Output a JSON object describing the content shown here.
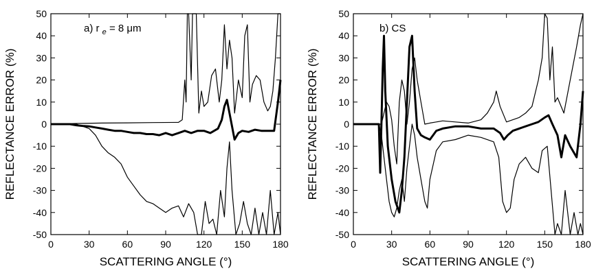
{
  "chart_data": [
    {
      "type": "line",
      "panel_label": "a) r",
      "panel_label_sub": "e",
      "panel_label_rest": " = 8 μm",
      "xlabel": "SCATTERING ANGLE (°)",
      "ylabel": "REFLECTANCE ERROR (%)",
      "xlim": [
        0,
        180
      ],
      "ylim": [
        -50,
        50
      ],
      "xticks": [
        "0",
        "30",
        "60",
        "90",
        "120",
        "150",
        "180"
      ],
      "yticks": [
        "50",
        "40",
        "30",
        "20",
        "10",
        "0",
        "-10",
        "-20",
        "-30",
        "-40",
        "-50"
      ],
      "grid": false,
      "series": [
        {
          "style": "thin",
          "x": [
            0,
            20,
            40,
            60,
            80,
            100,
            103,
            105,
            106,
            107,
            108,
            110,
            111,
            112,
            114,
            116,
            118,
            120,
            123,
            126,
            129,
            132,
            134,
            136,
            138,
            140,
            142,
            144,
            147,
            150,
            152,
            154,
            156,
            158,
            161,
            164,
            167,
            170,
            172,
            174,
            176,
            178,
            180
          ],
          "y": [
            0,
            0.3,
            0.5,
            0.6,
            0.7,
            0.8,
            2,
            20,
            10,
            50,
            50,
            20,
            50,
            50,
            50,
            5,
            15,
            8,
            10,
            22,
            25,
            10,
            20,
            45,
            25,
            38,
            30,
            5,
            20,
            12,
            40,
            45,
            10,
            18,
            22,
            20,
            10,
            6,
            8,
            15,
            30,
            50,
            50
          ]
        },
        {
          "style": "thick",
          "x": [
            0,
            15,
            20,
            25,
            30,
            35,
            40,
            45,
            50,
            55,
            60,
            65,
            70,
            75,
            80,
            85,
            90,
            95,
            100,
            105,
            110,
            115,
            120,
            125,
            128,
            131,
            134,
            136,
            138,
            140,
            142,
            144,
            147,
            150,
            155,
            160,
            165,
            170,
            175,
            178,
            180
          ],
          "y": [
            0,
            0,
            -0.5,
            -0.8,
            -1,
            -1.5,
            -2,
            -2.5,
            -3,
            -3,
            -3.5,
            -4,
            -4,
            -4.5,
            -4.5,
            -5,
            -4,
            -5,
            -4,
            -3,
            -4,
            -3,
            -3,
            -4,
            -3,
            -2,
            2,
            8,
            11,
            5,
            -1,
            -7,
            -4,
            -3,
            -3.5,
            -2.5,
            -3,
            -3,
            -3,
            10,
            20
          ]
        },
        {
          "style": "thin",
          "x": [
            0,
            20,
            25,
            30,
            35,
            40,
            45,
            50,
            55,
            60,
            65,
            70,
            75,
            80,
            85,
            90,
            95,
            100,
            104,
            108,
            112,
            115,
            118,
            121,
            124,
            127,
            130,
            133,
            136,
            138,
            140,
            142,
            145,
            148,
            151,
            154,
            157,
            160,
            163,
            166,
            169,
            172,
            175,
            178,
            180
          ],
          "y": [
            0,
            0,
            -1,
            -2,
            -5,
            -10,
            -13,
            -15,
            -18,
            -24,
            -28,
            -32,
            -35,
            -36,
            -38,
            -40,
            -38,
            -37,
            -42,
            -36,
            -40,
            -50,
            -50,
            -35,
            -45,
            -43,
            -50,
            -30,
            -42,
            -20,
            -8,
            -30,
            -50,
            -45,
            -35,
            -45,
            -50,
            -38,
            -50,
            -40,
            -50,
            -30,
            -50,
            -40,
            -50
          ]
        }
      ]
    },
    {
      "type": "line",
      "panel_label": "b) CS",
      "xlabel": "SCATTERING ANGLE (°)",
      "ylabel": "REFLECTANCE ERROR (%)",
      "xlim": [
        0,
        180
      ],
      "ylim": [
        -50,
        50
      ],
      "xticks": [
        "0",
        "30",
        "60",
        "90",
        "120",
        "150",
        "180"
      ],
      "yticks": [
        "50",
        "40",
        "30",
        "20",
        "10",
        "0",
        "-10",
        "-20",
        "-30",
        "-40",
        "-50"
      ],
      "grid": false,
      "series": [
        {
          "style": "thin",
          "x": [
            0,
            20,
            22,
            24,
            26,
            28,
            30,
            32,
            34,
            36,
            38,
            40,
            42,
            44,
            46,
            48,
            50,
            53,
            56,
            60,
            65,
            70,
            80,
            90,
            100,
            105,
            110,
            112,
            115,
            120,
            125,
            130,
            135,
            140,
            145,
            148,
            150,
            152,
            154,
            156,
            158,
            160,
            165,
            170,
            175,
            178,
            180
          ],
          "y": [
            0,
            0,
            0,
            5,
            10,
            8,
            2,
            -10,
            -18,
            10,
            20,
            15,
            0,
            10,
            25,
            30,
            20,
            10,
            0,
            0.5,
            1,
            1.5,
            1,
            0.5,
            2,
            5,
            10,
            15,
            8,
            1,
            2,
            3,
            5,
            8,
            20,
            30,
            50,
            48,
            20,
            35,
            10,
            12,
            5,
            20,
            35,
            45,
            50
          ]
        },
        {
          "style": "thick",
          "x": [
            0,
            20,
            21,
            22,
            23,
            24,
            25,
            27,
            30,
            33,
            36,
            38,
            40,
            42,
            44,
            46,
            48,
            50,
            53,
            56,
            60,
            65,
            70,
            80,
            90,
            100,
            110,
            115,
            118,
            121,
            125,
            130,
            135,
            140,
            145,
            150,
            153,
            156,
            160,
            163,
            166,
            170,
            175,
            178,
            180
          ],
          "y": [
            0,
            0,
            -22,
            0,
            25,
            40,
            15,
            -10,
            -25,
            -35,
            -40,
            -30,
            -15,
            10,
            35,
            40,
            15,
            -2,
            -5,
            -6,
            -7,
            -3,
            -2,
            -1,
            -1,
            -2,
            -2,
            -4,
            -7,
            -5,
            -3,
            -2,
            -1,
            0,
            1,
            3,
            4,
            0,
            -5,
            -15,
            -5,
            -10,
            -15,
            0,
            15
          ]
        },
        {
          "style": "thin",
          "x": [
            0,
            20,
            22,
            24,
            26,
            28,
            30,
            32,
            34,
            36,
            38,
            40,
            42,
            44,
            46,
            48,
            50,
            53,
            56,
            58,
            60,
            65,
            70,
            80,
            90,
            100,
            110,
            114,
            117,
            120,
            123,
            126,
            130,
            135,
            140,
            145,
            148,
            152,
            155,
            158,
            160,
            163,
            166,
            170,
            173,
            176,
            178,
            180
          ],
          "y": [
            0,
            0,
            -5,
            -15,
            -25,
            -35,
            -40,
            -42,
            -38,
            -30,
            -25,
            -35,
            -20,
            -10,
            0,
            -5,
            -15,
            -25,
            -35,
            -38,
            -25,
            -12,
            -8,
            -7,
            -5,
            -6,
            -8,
            -15,
            -35,
            -40,
            -38,
            -25,
            -18,
            -15,
            -20,
            -22,
            -12,
            -10,
            -30,
            -50,
            -45,
            -50,
            -30,
            -50,
            -40,
            -50,
            -45,
            -50
          ]
        }
      ]
    }
  ]
}
